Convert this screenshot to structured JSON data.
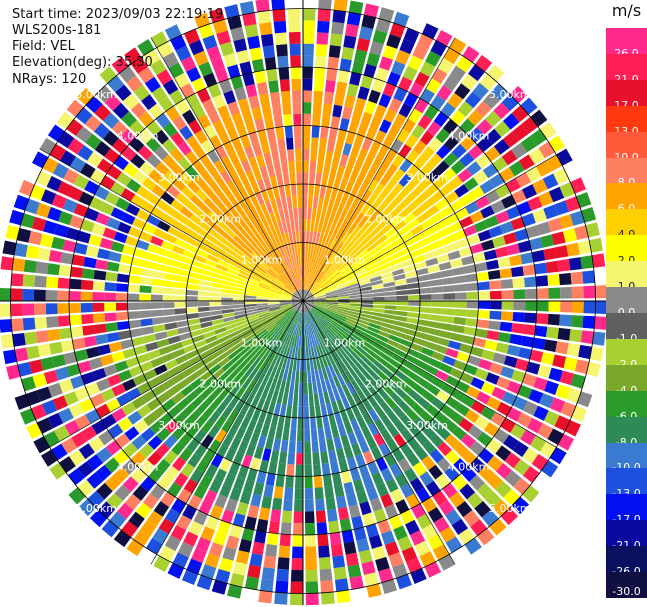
{
  "header": {
    "start_time": "Start time: 2023/09/03 22:19:19",
    "site": "WLS200s-181",
    "field": "Field: VEL",
    "elevation": "Elevation(deg): 35.30",
    "nrays": "NRays: 120"
  },
  "colorbar": {
    "unit": "m/s",
    "ticks": [
      "26.0",
      "21.0",
      "17.0",
      "13.0",
      "10.0",
      "8.0",
      "6.0",
      "4.0",
      "2.0",
      "1.0",
      "0.0",
      "-1.0",
      "-2.0",
      "-4.0",
      "-6.0",
      "-8.0",
      "-10.0",
      "-13.0",
      "-17.0",
      "-21.0",
      "-26.0",
      "-30.0"
    ],
    "colors": [
      "#ff2a8c",
      "#ff1f55",
      "#e8102a",
      "#ff3a10",
      "#ff5a3a",
      "#ff8060",
      "#ffa400",
      "#ffd000",
      "#ffff00",
      "#f5f570",
      "#8a8a8a",
      "#606060",
      "#a8d030",
      "#7aa828",
      "#2a9a2a",
      "#2e8b57",
      "#3a7ad0",
      "#1e50e0",
      "#0010f0",
      "#0a0aa0",
      "#0a1060",
      "#101040"
    ]
  },
  "rings": {
    "labels": [
      "1.00km",
      "2.00km",
      "3.00km",
      "4.00km",
      "5.00km"
    ]
  },
  "scan": {
    "nrays": 120,
    "max_range_km": 5.2
  }
}
